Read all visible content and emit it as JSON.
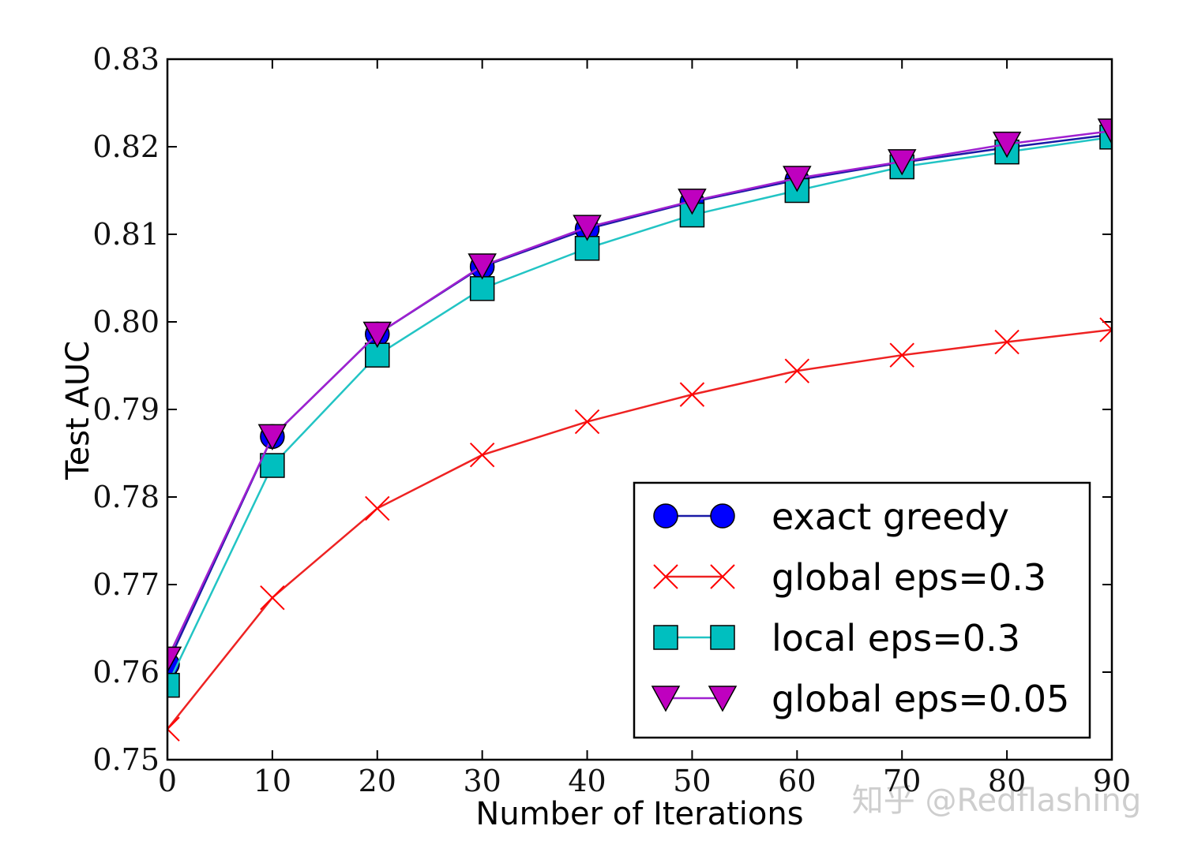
{
  "chart_data": {
    "type": "line",
    "xlabel": "Number of Iterations",
    "ylabel": "Test AUC",
    "x": [
      0,
      10,
      20,
      30,
      40,
      50,
      60,
      70,
      80,
      90
    ],
    "series": [
      {
        "name": "exact greedy",
        "color": "#0000ff",
        "line_color": "#1a1aa6",
        "marker": "circle",
        "values": [
          0.7609,
          0.7869,
          0.7986,
          0.8063,
          0.8106,
          0.8137,
          0.8162,
          0.8182,
          0.8199,
          0.8214
        ]
      },
      {
        "name": "global eps=0.3",
        "color": "#ff0000",
        "line_color": "#ee2222",
        "marker": "x",
        "values": [
          0.7535,
          0.7685,
          0.7787,
          0.7848,
          0.7886,
          0.7917,
          0.7944,
          0.7962,
          0.7977,
          0.7991
        ]
      },
      {
        "name": "local eps=0.3",
        "color": "#00bfbf",
        "line_color": "#22c4c4",
        "marker": "square",
        "values": [
          0.7585,
          0.7836,
          0.7962,
          0.8038,
          0.8084,
          0.8122,
          0.815,
          0.8177,
          0.8194,
          0.8211
        ]
      },
      {
        "name": "global eps=0.05",
        "color": "#bf00bf",
        "line_color": "#a020d0",
        "marker": "triangle-down",
        "values": [
          0.7615,
          0.7869,
          0.7986,
          0.8064,
          0.8108,
          0.8138,
          0.8164,
          0.8183,
          0.8203,
          0.8218
        ]
      }
    ],
    "xlim": [
      0,
      90
    ],
    "xticks": [
      0,
      10,
      20,
      30,
      40,
      50,
      60,
      70,
      80,
      90
    ],
    "ylim": [
      0.75,
      0.83
    ],
    "yticks": [
      0.75,
      0.76,
      0.77,
      0.78,
      0.79,
      {
        "value": 0.8,
        "label": "0.80"
      },
      0.81,
      0.82,
      0.83
    ],
    "legend": "lower right"
  },
  "watermark": "知乎 @Redflashing"
}
